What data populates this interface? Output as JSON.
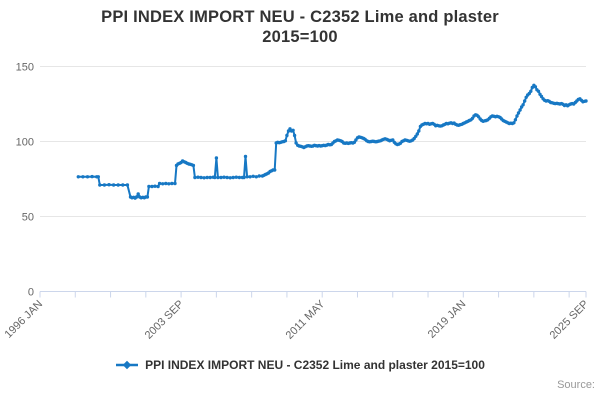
{
  "title": {
    "line1": "PPI INDEX IMPORT NEU - C2352 Lime and plaster",
    "line2": "2015=100"
  },
  "legend": {
    "label": "PPI INDEX IMPORT NEU - C2352 Lime and plaster 2015=100"
  },
  "credits": {
    "label": "Source:"
  },
  "colors": {
    "series": "#1778c4",
    "grid": "#e6e6e6",
    "axis": "#ccd6eb",
    "label": "#666666",
    "title": "#333333",
    "credits": "#999999"
  },
  "chart_data": {
    "type": "line",
    "title": "PPI INDEX IMPORT NEU - C2352 Lime and plaster 2015=100",
    "grid": true,
    "legend_position": "bottom",
    "x_axis": {
      "unit": "months since 1996-01",
      "start": "1996 JAN",
      "end": "2025 SEP",
      "range_months": [
        0,
        356
      ],
      "tick_months": [
        0,
        23,
        46,
        69,
        92,
        115,
        138,
        161,
        184,
        207,
        230,
        253,
        276,
        299,
        322,
        345,
        356
      ],
      "labeled_ticks": [
        {
          "m": 0,
          "label": "1996 JAN"
        },
        {
          "m": 92,
          "label": "2003 SEP"
        },
        {
          "m": 184,
          "label": "2011 MAY"
        },
        {
          "m": 276,
          "label": "2019 JAN"
        },
        {
          "m": 356,
          "label": "2025 SEP"
        }
      ]
    },
    "y_axis": {
      "min": 0,
      "max": 150,
      "ticks": [
        {
          "v": 0,
          "label": "0"
        },
        {
          "v": 50,
          "label": "50"
        },
        {
          "v": 100,
          "label": "100"
        },
        {
          "v": 150,
          "label": "150"
        }
      ]
    },
    "series": [
      {
        "name": "PPI INDEX IMPORT NEU - C2352 Lime and plaster 2015=100",
        "points": [
          [
            25,
            76.5
          ],
          [
            28,
            76.5
          ],
          [
            31,
            76.5
          ],
          [
            34,
            76.6
          ],
          [
            37,
            76.5
          ],
          [
            38,
            76.5
          ],
          [
            39,
            71
          ],
          [
            42,
            71
          ],
          [
            45,
            71.2
          ],
          [
            48,
            71
          ],
          [
            51,
            71
          ],
          [
            54,
            71
          ],
          [
            57,
            71
          ],
          [
            59,
            63
          ],
          [
            60,
            62.5
          ],
          [
            61,
            62.8
          ],
          [
            62,
            62.3
          ],
          [
            63,
            63
          ],
          [
            64,
            65
          ],
          [
            65,
            63
          ],
          [
            66,
            62.5
          ],
          [
            67,
            62.8
          ],
          [
            68,
            62.5
          ],
          [
            69,
            63
          ],
          [
            70,
            63
          ],
          [
            71,
            70
          ],
          [
            73,
            70
          ],
          [
            75,
            70.2
          ],
          [
            77,
            70
          ],
          [
            78,
            72
          ],
          [
            80,
            71.8
          ],
          [
            82,
            72
          ],
          [
            84,
            71.8
          ],
          [
            86,
            72
          ],
          [
            88,
            72
          ],
          [
            89,
            84
          ],
          [
            90,
            85
          ],
          [
            91,
            85.5
          ],
          [
            92,
            86
          ],
          [
            93,
            87
          ],
          [
            94,
            86.5
          ],
          [
            95,
            86
          ],
          [
            96,
            85.5
          ],
          [
            97,
            85
          ],
          [
            98,
            84.8
          ],
          [
            99,
            84.5
          ],
          [
            100,
            84
          ],
          [
            101,
            76
          ],
          [
            103,
            76.2
          ],
          [
            105,
            76
          ],
          [
            107,
            75.8
          ],
          [
            109,
            76
          ],
          [
            111,
            76
          ],
          [
            113,
            76.2
          ],
          [
            114,
            76
          ],
          [
            115,
            89
          ],
          [
            116,
            76
          ],
          [
            118,
            76
          ],
          [
            120,
            76.2
          ],
          [
            122,
            76
          ],
          [
            124,
            75.8
          ],
          [
            126,
            76
          ],
          [
            128,
            76.2
          ],
          [
            130,
            76
          ],
          [
            132,
            76
          ],
          [
            133,
            76
          ],
          [
            134,
            90
          ],
          [
            135,
            76.5
          ],
          [
            137,
            76.5
          ],
          [
            139,
            76.8
          ],
          [
            141,
            76.5
          ],
          [
            143,
            77
          ],
          [
            145,
            77
          ],
          [
            146,
            77.5
          ],
          [
            147,
            78
          ],
          [
            148,
            78.5
          ],
          [
            149,
            79
          ],
          [
            150,
            80
          ],
          [
            151,
            80.5
          ],
          [
            152,
            81
          ],
          [
            153,
            81
          ],
          [
            154,
            99
          ],
          [
            155,
            99.5
          ],
          [
            156,
            99.2
          ],
          [
            157,
            99.5
          ],
          [
            158,
            99.8
          ],
          [
            159,
            100
          ],
          [
            160,
            100.5
          ],
          [
            161,
            104
          ],
          [
            162,
            107
          ],
          [
            163,
            108.5
          ],
          [
            164,
            107
          ],
          [
            165,
            107.5
          ],
          [
            166,
            104
          ],
          [
            167,
            99
          ],
          [
            168,
            97.5
          ],
          [
            169,
            97
          ],
          [
            170,
            96.8
          ],
          [
            171,
            96.5
          ],
          [
            172,
            96
          ],
          [
            173,
            96.5
          ],
          [
            174,
            97
          ],
          [
            175,
            97.2
          ],
          [
            176,
            97
          ],
          [
            177,
            96.8
          ],
          [
            178,
            97
          ],
          [
            179,
            97.5
          ],
          [
            180,
            97.2
          ],
          [
            181,
            97
          ],
          [
            182,
            97.3
          ],
          [
            183,
            97
          ],
          [
            184,
            97.2
          ],
          [
            185,
            97.5
          ],
          [
            186,
            97.3
          ],
          [
            187,
            97.6
          ],
          [
            188,
            98
          ],
          [
            189,
            97.8
          ],
          [
            190,
            98
          ],
          [
            191,
            99
          ],
          [
            192,
            100
          ],
          [
            193,
            100.5
          ],
          [
            194,
            101
          ],
          [
            195,
            100.8
          ],
          [
            196,
            100.5
          ],
          [
            197,
            100
          ],
          [
            198,
            99
          ],
          [
            199,
            98.8
          ],
          [
            200,
            99
          ],
          [
            201,
            98.7
          ],
          [
            202,
            99
          ],
          [
            203,
            99.2
          ],
          [
            204,
            99
          ],
          [
            205,
            99.5
          ],
          [
            206,
            101
          ],
          [
            207,
            102.5
          ],
          [
            208,
            103
          ],
          [
            209,
            102.8
          ],
          [
            210,
            102.5
          ],
          [
            211,
            102
          ],
          [
            212,
            101.5
          ],
          [
            213,
            100.5
          ],
          [
            214,
            100
          ],
          [
            215,
            99.8
          ],
          [
            216,
            100
          ],
          [
            217,
            100.2
          ],
          [
            218,
            100
          ],
          [
            219,
            99.8
          ],
          [
            220,
            100
          ],
          [
            221,
            100.3
          ],
          [
            222,
            100.5
          ],
          [
            223,
            101
          ],
          [
            224,
            101.5
          ],
          [
            225,
            101.8
          ],
          [
            226,
            101.5
          ],
          [
            227,
            101
          ],
          [
            228,
            100.5
          ],
          [
            229,
            100.8
          ],
          [
            230,
            101
          ],
          [
            231,
            99.5
          ],
          [
            232,
            98.5
          ],
          [
            233,
            98
          ],
          [
            234,
            98.3
          ],
          [
            235,
            98.8
          ],
          [
            236,
            100
          ],
          [
            237,
            100.5
          ],
          [
            238,
            101
          ],
          [
            239,
            100.8
          ],
          [
            240,
            100.5
          ],
          [
            241,
            100.2
          ],
          [
            242,
            100.5
          ],
          [
            243,
            101
          ],
          [
            244,
            102
          ],
          [
            245,
            103.5
          ],
          [
            246,
            105
          ],
          [
            247,
            107
          ],
          [
            248,
            110
          ],
          [
            249,
            111
          ],
          [
            250,
            111.5
          ],
          [
            251,
            112
          ],
          [
            252,
            111.8
          ],
          [
            253,
            112
          ],
          [
            254,
            111.5
          ],
          [
            255,
            111.8
          ],
          [
            256,
            112
          ],
          [
            257,
            111.5
          ],
          [
            258,
            110.5
          ],
          [
            259,
            110.8
          ],
          [
            260,
            110.5
          ],
          [
            261,
            110.3
          ],
          [
            262,
            110.5
          ],
          [
            263,
            111
          ],
          [
            264,
            111.5
          ],
          [
            265,
            112
          ],
          [
            266,
            111.8
          ],
          [
            267,
            112.2
          ],
          [
            268,
            112.5
          ],
          [
            269,
            112
          ],
          [
            270,
            112.3
          ],
          [
            271,
            111.5
          ],
          [
            272,
            111
          ],
          [
            273,
            110.8
          ],
          [
            274,
            111.2
          ],
          [
            275,
            111.5
          ],
          [
            276,
            112
          ],
          [
            277,
            112.5
          ],
          [
            278,
            113
          ],
          [
            279,
            113.5
          ],
          [
            280,
            114
          ],
          [
            281,
            114.5
          ],
          [
            282,
            115.5
          ],
          [
            283,
            117
          ],
          [
            284,
            117.8
          ],
          [
            285,
            117.5
          ],
          [
            286,
            116.5
          ],
          [
            287,
            115
          ],
          [
            288,
            114
          ],
          [
            289,
            113.5
          ],
          [
            290,
            113.8
          ],
          [
            291,
            114
          ],
          [
            292,
            114.5
          ],
          [
            293,
            115.5
          ],
          [
            294,
            116.5
          ],
          [
            295,
            117
          ],
          [
            296,
            116.8
          ],
          [
            297,
            116.5
          ],
          [
            298,
            116.8
          ],
          [
            299,
            116.5
          ],
          [
            300,
            116
          ],
          [
            301,
            115
          ],
          [
            302,
            114
          ],
          [
            303,
            113.5
          ],
          [
            304,
            113
          ],
          [
            305,
            112.5
          ],
          [
            306,
            112
          ],
          [
            307,
            112.2
          ],
          [
            308,
            112
          ],
          [
            309,
            112.5
          ],
          [
            310,
            114.5
          ],
          [
            311,
            117
          ],
          [
            312,
            119
          ],
          [
            313,
            121
          ],
          [
            314,
            123
          ],
          [
            315,
            124.5
          ],
          [
            316,
            127
          ],
          [
            317,
            129.5
          ],
          [
            318,
            131
          ],
          [
            319,
            132
          ],
          [
            320,
            133.5
          ],
          [
            321,
            136
          ],
          [
            322,
            137.5
          ],
          [
            323,
            136.5
          ],
          [
            324,
            134.5
          ],
          [
            325,
            133.5
          ],
          [
            326,
            131.5
          ],
          [
            327,
            130
          ],
          [
            328,
            128.5
          ],
          [
            329,
            127.5
          ],
          [
            330,
            127
          ],
          [
            331,
            127.2
          ],
          [
            332,
            126.8
          ],
          [
            333,
            126
          ],
          [
            334,
            125.8
          ],
          [
            335,
            125.5
          ],
          [
            336,
            125.3
          ],
          [
            337,
            125.5
          ],
          [
            338,
            125.2
          ],
          [
            339,
            125
          ],
          [
            340,
            125.3
          ],
          [
            341,
            124.8
          ],
          [
            342,
            124
          ],
          [
            343,
            124.5
          ],
          [
            344,
            123.8
          ],
          [
            345,
            124.5
          ],
          [
            346,
            125
          ],
          [
            347,
            125.3
          ],
          [
            348,
            125
          ],
          [
            349,
            126
          ],
          [
            350,
            127
          ],
          [
            351,
            128
          ],
          [
            352,
            128.5
          ],
          [
            353,
            127.5
          ],
          [
            354,
            126.5
          ],
          [
            355,
            126.8
          ],
          [
            356,
            127
          ]
        ]
      }
    ]
  }
}
